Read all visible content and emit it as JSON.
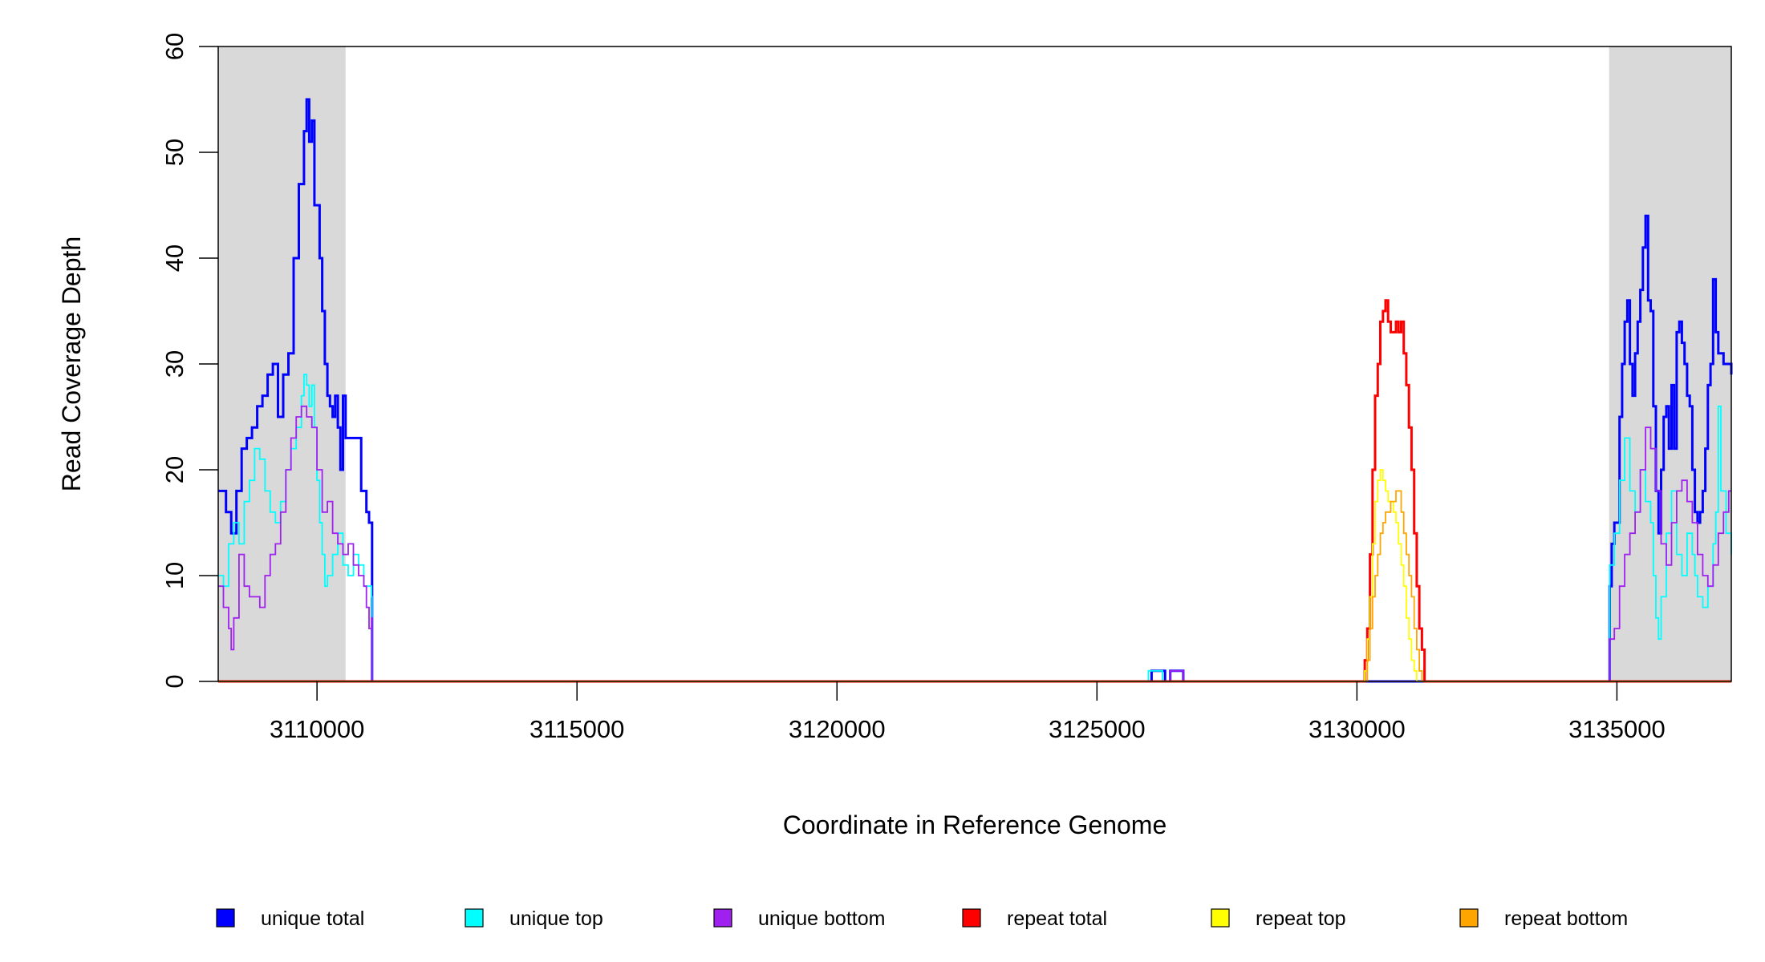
{
  "chart_data": {
    "type": "line",
    "title": "",
    "xlabel": "Coordinate in Reference Genome",
    "ylabel": "Read Coverage Depth",
    "xlim": [
      3108100,
      3137200
    ],
    "ylim": [
      0,
      60
    ],
    "x_ticks": [
      3110000,
      3115000,
      3120000,
      3125000,
      3130000,
      3135000
    ],
    "y_ticks": [
      0,
      10,
      20,
      30,
      40,
      50,
      60
    ],
    "x_tick_labels": [
      "3110000",
      "3115000",
      "3120000",
      "3125000",
      "3130000",
      "3135000"
    ],
    "y_tick_labels": [
      "0",
      "10",
      "20",
      "30",
      "40",
      "50",
      "60"
    ],
    "shaded_regions": [
      {
        "x_start": 3108100,
        "x_end": 3110550,
        "color": "#d9d9d9"
      },
      {
        "x_start": 3134850,
        "x_end": 3137200,
        "color": "#d9d9d9"
      }
    ],
    "legend_position": "bottom",
    "series": [
      {
        "name": "unique total",
        "color": "#0000ff",
        "points": [
          [
            3108100,
            18
          ],
          [
            3108250,
            16
          ],
          [
            3108350,
            14
          ],
          [
            3108450,
            18
          ],
          [
            3108550,
            22
          ],
          [
            3108650,
            23
          ],
          [
            3108750,
            24
          ],
          [
            3108850,
            26
          ],
          [
            3108950,
            27
          ],
          [
            3109050,
            29
          ],
          [
            3109150,
            30
          ],
          [
            3109250,
            25
          ],
          [
            3109350,
            29
          ],
          [
            3109450,
            31
          ],
          [
            3109550,
            40
          ],
          [
            3109650,
            47
          ],
          [
            3109750,
            52
          ],
          [
            3109800,
            55
          ],
          [
            3109850,
            51
          ],
          [
            3109900,
            53
          ],
          [
            3109950,
            45
          ],
          [
            3110050,
            40
          ],
          [
            3110100,
            35
          ],
          [
            3110150,
            30
          ],
          [
            3110200,
            27
          ],
          [
            3110250,
            26
          ],
          [
            3110300,
            25
          ],
          [
            3110350,
            27
          ],
          [
            3110400,
            24
          ],
          [
            3110450,
            20
          ],
          [
            3110500,
            27
          ],
          [
            3110550,
            23
          ],
          [
            3110650,
            23
          ],
          [
            3110750,
            23
          ],
          [
            3110850,
            18
          ],
          [
            3110950,
            16
          ],
          [
            3111000,
            15
          ],
          [
            3111050,
            15
          ],
          [
            3111060,
            0
          ],
          [
            3126000,
            0
          ],
          [
            3126050,
            1
          ],
          [
            3126300,
            1
          ],
          [
            3126310,
            0
          ],
          [
            3126400,
            0
          ],
          [
            3126410,
            1
          ],
          [
            3126650,
            1
          ],
          [
            3126660,
            0
          ],
          [
            3134850,
            0
          ],
          [
            3134860,
            9
          ],
          [
            3134900,
            13
          ],
          [
            3134950,
            15
          ],
          [
            3135050,
            25
          ],
          [
            3135100,
            30
          ],
          [
            3135150,
            34
          ],
          [
            3135200,
            36
          ],
          [
            3135250,
            30
          ],
          [
            3135300,
            27
          ],
          [
            3135350,
            31
          ],
          [
            3135400,
            34
          ],
          [
            3135450,
            37
          ],
          [
            3135500,
            41
          ],
          [
            3135550,
            44
          ],
          [
            3135600,
            36
          ],
          [
            3135650,
            35
          ],
          [
            3135700,
            26
          ],
          [
            3135750,
            18
          ],
          [
            3135800,
            14
          ],
          [
            3135850,
            20
          ],
          [
            3135900,
            25
          ],
          [
            3135950,
            26
          ],
          [
            3136000,
            22
          ],
          [
            3136050,
            28
          ],
          [
            3136100,
            22
          ],
          [
            3136150,
            33
          ],
          [
            3136200,
            34
          ],
          [
            3136250,
            32
          ],
          [
            3136300,
            30
          ],
          [
            3136350,
            27
          ],
          [
            3136400,
            26
          ],
          [
            3136450,
            20
          ],
          [
            3136500,
            16
          ],
          [
            3136550,
            15
          ],
          [
            3136600,
            16
          ],
          [
            3136650,
            18
          ],
          [
            3136700,
            22
          ],
          [
            3136750,
            28
          ],
          [
            3136800,
            30
          ],
          [
            3136850,
            38
          ],
          [
            3136900,
            33
          ],
          [
            3136950,
            31
          ],
          [
            3137050,
            30
          ],
          [
            3137200,
            29
          ]
        ]
      },
      {
        "name": "unique top",
        "color": "#00ffff",
        "points": [
          [
            3108100,
            10
          ],
          [
            3108200,
            9
          ],
          [
            3108300,
            13
          ],
          [
            3108400,
            15
          ],
          [
            3108500,
            13
          ],
          [
            3108600,
            17
          ],
          [
            3108700,
            19
          ],
          [
            3108800,
            22
          ],
          [
            3108900,
            21
          ],
          [
            3109000,
            18
          ],
          [
            3109100,
            16
          ],
          [
            3109200,
            15
          ],
          [
            3109300,
            17
          ],
          [
            3109400,
            20
          ],
          [
            3109500,
            22
          ],
          [
            3109600,
            24
          ],
          [
            3109700,
            27
          ],
          [
            3109750,
            29
          ],
          [
            3109800,
            28
          ],
          [
            3109850,
            26
          ],
          [
            3109900,
            28
          ],
          [
            3109950,
            24
          ],
          [
            3110000,
            19
          ],
          [
            3110050,
            15
          ],
          [
            3110100,
            12
          ],
          [
            3110150,
            9
          ],
          [
            3110200,
            10
          ],
          [
            3110300,
            12
          ],
          [
            3110400,
            14
          ],
          [
            3110500,
            11
          ],
          [
            3110600,
            10
          ],
          [
            3110700,
            12
          ],
          [
            3110800,
            11
          ],
          [
            3110900,
            9
          ],
          [
            3111000,
            9
          ],
          [
            3111050,
            8
          ],
          [
            3111060,
            0
          ],
          [
            3125980,
            0
          ],
          [
            3125990,
            1
          ],
          [
            3126250,
            1
          ],
          [
            3126260,
            0
          ],
          [
            3134850,
            0
          ],
          [
            3134860,
            11
          ],
          [
            3134950,
            14
          ],
          [
            3135050,
            19
          ],
          [
            3135150,
            23
          ],
          [
            3135250,
            18
          ],
          [
            3135350,
            16
          ],
          [
            3135450,
            20
          ],
          [
            3135550,
            17
          ],
          [
            3135650,
            15
          ],
          [
            3135700,
            10
          ],
          [
            3135750,
            6
          ],
          [
            3135800,
            4
          ],
          [
            3135850,
            8
          ],
          [
            3135950,
            14
          ],
          [
            3136050,
            18
          ],
          [
            3136150,
            12
          ],
          [
            3136250,
            10
          ],
          [
            3136350,
            14
          ],
          [
            3136450,
            12
          ],
          [
            3136500,
            10
          ],
          [
            3136550,
            8
          ],
          [
            3136650,
            7
          ],
          [
            3136750,
            9
          ],
          [
            3136850,
            13
          ],
          [
            3136900,
            16
          ],
          [
            3136950,
            26
          ],
          [
            3137000,
            18
          ],
          [
            3137100,
            14
          ],
          [
            3137200,
            12
          ]
        ]
      },
      {
        "name": "unique bottom",
        "color": "#a020f0",
        "points": [
          [
            3108100,
            9
          ],
          [
            3108200,
            7
          ],
          [
            3108300,
            5
          ],
          [
            3108350,
            3
          ],
          [
            3108400,
            6
          ],
          [
            3108500,
            12
          ],
          [
            3108600,
            9
          ],
          [
            3108700,
            8
          ],
          [
            3108800,
            8
          ],
          [
            3108900,
            7
          ],
          [
            3109000,
            10
          ],
          [
            3109100,
            12
          ],
          [
            3109200,
            13
          ],
          [
            3109300,
            16
          ],
          [
            3109400,
            20
          ],
          [
            3109500,
            23
          ],
          [
            3109600,
            25
          ],
          [
            3109700,
            26
          ],
          [
            3109800,
            25
          ],
          [
            3109900,
            24
          ],
          [
            3110000,
            20
          ],
          [
            3110100,
            16
          ],
          [
            3110200,
            17
          ],
          [
            3110300,
            14
          ],
          [
            3110400,
            13
          ],
          [
            3110500,
            12
          ],
          [
            3110600,
            13
          ],
          [
            3110700,
            11
          ],
          [
            3110800,
            10
          ],
          [
            3110900,
            9
          ],
          [
            3110950,
            7
          ],
          [
            3111000,
            5
          ],
          [
            3111050,
            6
          ],
          [
            3111060,
            0
          ],
          [
            3126400,
            0
          ],
          [
            3126410,
            1
          ],
          [
            3126650,
            1
          ],
          [
            3126660,
            0
          ],
          [
            3134850,
            0
          ],
          [
            3134860,
            4
          ],
          [
            3134950,
            5
          ],
          [
            3135050,
            9
          ],
          [
            3135150,
            12
          ],
          [
            3135250,
            14
          ],
          [
            3135350,
            16
          ],
          [
            3135450,
            20
          ],
          [
            3135550,
            24
          ],
          [
            3135650,
            22
          ],
          [
            3135750,
            18
          ],
          [
            3135850,
            13
          ],
          [
            3135950,
            11
          ],
          [
            3136050,
            15
          ],
          [
            3136150,
            18
          ],
          [
            3136250,
            19
          ],
          [
            3136350,
            17
          ],
          [
            3136450,
            15
          ],
          [
            3136550,
            12
          ],
          [
            3136650,
            10
          ],
          [
            3136750,
            9
          ],
          [
            3136850,
            11
          ],
          [
            3136950,
            14
          ],
          [
            3137050,
            16
          ],
          [
            3137150,
            18
          ],
          [
            3137200,
            18
          ]
        ]
      },
      {
        "name": "repeat total",
        "color": "#ff0000",
        "points": [
          [
            3108100,
            0
          ],
          [
            3130100,
            0
          ],
          [
            3130150,
            2
          ],
          [
            3130200,
            5
          ],
          [
            3130250,
            12
          ],
          [
            3130300,
            20
          ],
          [
            3130350,
            27
          ],
          [
            3130400,
            30
          ],
          [
            3130450,
            34
          ],
          [
            3130500,
            35
          ],
          [
            3130550,
            36
          ],
          [
            3130600,
            34
          ],
          [
            3130650,
            33
          ],
          [
            3130700,
            33
          ],
          [
            3130750,
            34
          ],
          [
            3130800,
            33
          ],
          [
            3130850,
            34
          ],
          [
            3130900,
            31
          ],
          [
            3130950,
            28
          ],
          [
            3131000,
            24
          ],
          [
            3131050,
            20
          ],
          [
            3131100,
            14
          ],
          [
            3131150,
            9
          ],
          [
            3131200,
            5
          ],
          [
            3131250,
            3
          ],
          [
            3131300,
            0
          ],
          [
            3137200,
            0
          ]
        ]
      },
      {
        "name": "repeat top",
        "color": "#ffff00",
        "points": [
          [
            3108100,
            0
          ],
          [
            3130100,
            0
          ],
          [
            3130150,
            1
          ],
          [
            3130200,
            4
          ],
          [
            3130250,
            8
          ],
          [
            3130300,
            13
          ],
          [
            3130350,
            17
          ],
          [
            3130400,
            19
          ],
          [
            3130450,
            20
          ],
          [
            3130500,
            19
          ],
          [
            3130550,
            18
          ],
          [
            3130600,
            17
          ],
          [
            3130650,
            17
          ],
          [
            3130700,
            16
          ],
          [
            3130750,
            15
          ],
          [
            3130800,
            13
          ],
          [
            3130850,
            11
          ],
          [
            3130900,
            9
          ],
          [
            3130950,
            6
          ],
          [
            3131000,
            4
          ],
          [
            3131050,
            2
          ],
          [
            3131100,
            1
          ],
          [
            3131150,
            0
          ],
          [
            3137200,
            0
          ]
        ]
      },
      {
        "name": "repeat bottom",
        "color": "#ffa500",
        "points": [
          [
            3108100,
            0
          ],
          [
            3130150,
            0
          ],
          [
            3130200,
            2
          ],
          [
            3130250,
            5
          ],
          [
            3130300,
            8
          ],
          [
            3130350,
            10
          ],
          [
            3130400,
            12
          ],
          [
            3130450,
            14
          ],
          [
            3130500,
            15
          ],
          [
            3130550,
            16
          ],
          [
            3130600,
            16
          ],
          [
            3130650,
            17
          ],
          [
            3130700,
            17
          ],
          [
            3130750,
            18
          ],
          [
            3130800,
            18
          ],
          [
            3130850,
            16
          ],
          [
            3130900,
            14
          ],
          [
            3130950,
            12
          ],
          [
            3131000,
            10
          ],
          [
            3131050,
            8
          ],
          [
            3131100,
            5
          ],
          [
            3131150,
            3
          ],
          [
            3131200,
            1
          ],
          [
            3131250,
            0
          ],
          [
            3137200,
            0
          ]
        ]
      }
    ]
  }
}
